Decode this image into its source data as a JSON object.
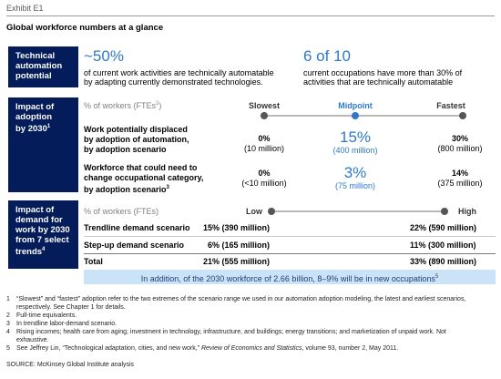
{
  "exhibit": {
    "label": "Exhibit E1",
    "title": "Global workforce numbers at a glance"
  },
  "technical": {
    "header": "Technical automation potential",
    "left_value": "~50%",
    "left_text_1": "of current work activities are technically automatable",
    "left_text_2": "by adapting currently demonstrated technologies.",
    "right_value": "6 of 10",
    "right_text_1": "current occupations have more than 30% of",
    "right_text_2": "activities that are technically automatable"
  },
  "adoption": {
    "header_1": "Impact of",
    "header_2": "adoption",
    "header_3": "by 2030",
    "header_sup": "1",
    "unit_label": "% of workers (FTEs",
    "unit_sup": "2",
    "unit_close": ")",
    "scale": {
      "left": "Slowest",
      "mid": "Midpoint",
      "right": "Fastest"
    },
    "rows": [
      {
        "label_1": "Work potentially displaced",
        "label_2": "by adoption of automation,",
        "label_3": "by adoption scenario",
        "label_sup": "",
        "left_pct": "0%",
        "left_sub": "(10 million)",
        "mid_pct": "15%",
        "mid_sub": "(400 million)",
        "right_pct": "30%",
        "right_sub": "(800 million)"
      },
      {
        "label_1": "Workforce that could need to",
        "label_2": "change occupational category,",
        "label_3": "by adoption scenario",
        "label_sup": "3",
        "left_pct": "0%",
        "left_sub": "(<10 million)",
        "mid_pct": "3%",
        "mid_sub": "(75 million)",
        "right_pct": "14%",
        "right_sub": "(375 million)"
      }
    ]
  },
  "demand": {
    "header_1": "Impact of",
    "header_2": "demand for",
    "header_3": "work by 2030",
    "header_4": "from 7 select",
    "header_5": "trends",
    "header_sup": "4",
    "unit_label": "% of workers (FTEs)",
    "scale": {
      "left": "Low",
      "right": "High"
    },
    "rows": [
      {
        "label": "Trendline demand scenario",
        "low": "15% (390 million)",
        "high": "22% (590 million)"
      },
      {
        "label": "Step-up demand scenario",
        "low": "6% (165 million)",
        "high": "11% (300 million)"
      },
      {
        "label": "Total",
        "low": "21% (555 million)",
        "high": "33% (890 million)"
      }
    ],
    "callout": "In addition, of the 2030 workforce of 2.66 billion, 8–9% will be in new occupations",
    "callout_sup": "5"
  },
  "footnotes": [
    {
      "num": "1",
      "text": "“Slowest” and “fastest” adoption refer to the two extremes of the scenario range we used in our automation adoption modeling, the latest and earliest scenarios, respectively. See Chapter 1 for details."
    },
    {
      "num": "2",
      "text": "Full-time equivalents."
    },
    {
      "num": "3",
      "text": "In trendline labor-demand scenario."
    },
    {
      "num": "4",
      "text": "Rising incomes; health care from aging; investment in technology, infrastructure, and buildings; energy transitions; and marketization of unpaid work. Not exhaustive."
    },
    {
      "num": "5",
      "text_pre": "See Jeffrey Lin, “Technological adaptation, cities, and new work,” ",
      "text_italic": "Review of Economics and Statistics",
      "text_post": ", volume 93, number 2, May 2011."
    }
  ],
  "source": "SOURCE: McKinsey Global Institute analysis",
  "colors": {
    "navy": "#051c5a",
    "accent_blue": "#2e79c9",
    "callout_bg": "#cbe3f7"
  }
}
